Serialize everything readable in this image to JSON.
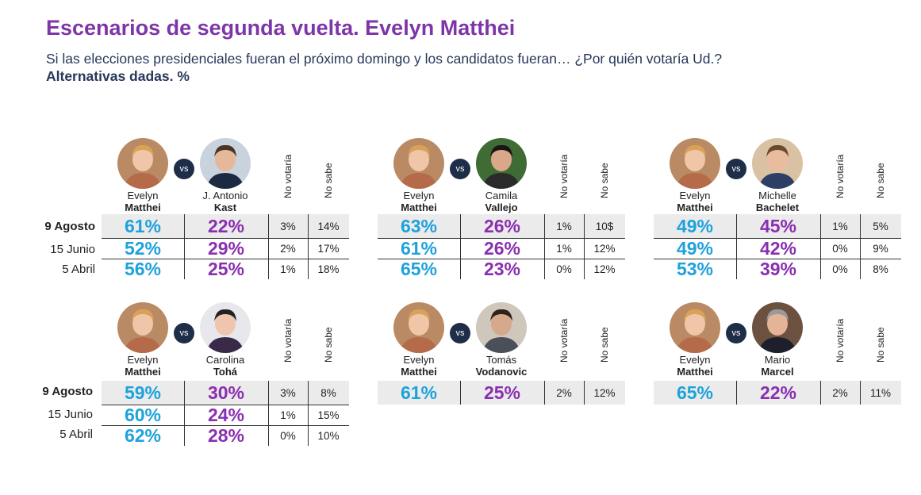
{
  "title": "Escenarios de segunda vuelta. Evelyn Matthei",
  "subtitle": "Si las elecciones presidenciales fueran el próximo domingo y los candidatos fueran… ¿Por quién votaría Ud.?",
  "subtitle2": "Alternativas dadas. %",
  "vs_label": "vs",
  "colors": {
    "title": "#7d35a8",
    "matthei": "#1ea2dc",
    "rival": "#8a2fb0",
    "highlight_row": "#ebebeb",
    "vs_badge": "#1e2d48"
  },
  "dates_top": [
    "9 Agosto",
    "15 Junio",
    "5 Abril"
  ],
  "dates_bottom": [
    "9 Agosto",
    "15 Junio",
    "5 Abril"
  ],
  "col_no_votaria": "No votaría",
  "col_no_sabe": "No sabe",
  "chart_data": [
    {
      "type": "table",
      "candidate_a": {
        "first": "Evelyn",
        "last": "Matthei"
      },
      "candidate_b": {
        "first": "J. Antonio",
        "last": "Kast"
      },
      "rows": [
        {
          "date": "9 Agosto",
          "a": "61%",
          "b": "22%",
          "no_votaria": "3%",
          "no_sabe": "14%"
        },
        {
          "date": "15 Junio",
          "a": "52%",
          "b": "29%",
          "no_votaria": "2%",
          "no_sabe": "17%"
        },
        {
          "date": "5 Abril",
          "a": "56%",
          "b": "25%",
          "no_votaria": "1%",
          "no_sabe": "18%"
        }
      ]
    },
    {
      "type": "table",
      "candidate_a": {
        "first": "Evelyn",
        "last": "Matthei"
      },
      "candidate_b": {
        "first": "Camila",
        "last": "Vallejo"
      },
      "rows": [
        {
          "date": "9 Agosto",
          "a": "63%",
          "b": "26%",
          "no_votaria": "1%",
          "no_sabe": "10$"
        },
        {
          "date": "15 Junio",
          "a": "61%",
          "b": "26%",
          "no_votaria": "1%",
          "no_sabe": "12%"
        },
        {
          "date": "5 Abril",
          "a": "65%",
          "b": "23%",
          "no_votaria": "0%",
          "no_sabe": "12%"
        }
      ]
    },
    {
      "type": "table",
      "candidate_a": {
        "first": "Evelyn",
        "last": "Matthei"
      },
      "candidate_b": {
        "first": "Michelle",
        "last": "Bachelet"
      },
      "rows": [
        {
          "date": "9 Agosto",
          "a": "49%",
          "b": "45%",
          "no_votaria": "1%",
          "no_sabe": "5%"
        },
        {
          "date": "15 Junio",
          "a": "49%",
          "b": "42%",
          "no_votaria": "0%",
          "no_sabe": "9%"
        },
        {
          "date": "5 Abril",
          "a": "53%",
          "b": "39%",
          "no_votaria": "0%",
          "no_sabe": "8%"
        }
      ]
    },
    {
      "type": "table",
      "candidate_a": {
        "first": "Evelyn",
        "last": "Matthei"
      },
      "candidate_b": {
        "first": "Carolina",
        "last": "Tohá"
      },
      "rows": [
        {
          "date": "9 Agosto",
          "a": "59%",
          "b": "30%",
          "no_votaria": "3%",
          "no_sabe": "8%"
        },
        {
          "date": "15 Junio",
          "a": "60%",
          "b": "24%",
          "no_votaria": "1%",
          "no_sabe": "15%"
        },
        {
          "date": "5 Abril",
          "a": "62%",
          "b": "28%",
          "no_votaria": "0%",
          "no_sabe": "10%"
        }
      ]
    },
    {
      "type": "table",
      "candidate_a": {
        "first": "Evelyn",
        "last": "Matthei"
      },
      "candidate_b": {
        "first": "Tomás",
        "last": "Vodanovic"
      },
      "rows": [
        {
          "date": "9 Agosto",
          "a": "61%",
          "b": "25%",
          "no_votaria": "2%",
          "no_sabe": "12%"
        }
      ]
    },
    {
      "type": "table",
      "candidate_a": {
        "first": "Evelyn",
        "last": "Matthei"
      },
      "candidate_b": {
        "first": "Mario",
        "last": "Marcel"
      },
      "rows": [
        {
          "date": "9 Agosto",
          "a": "65%",
          "b": "22%",
          "no_votaria": "2%",
          "no_sabe": "11%"
        }
      ]
    }
  ]
}
